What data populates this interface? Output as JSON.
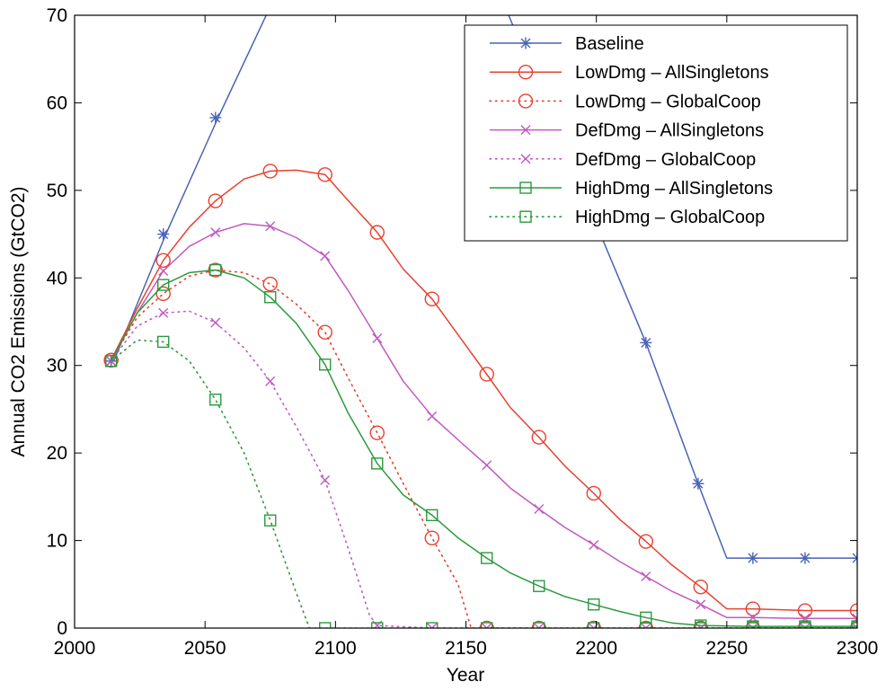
{
  "chart_data": {
    "type": "line",
    "title": "",
    "xlabel": "Year",
    "ylabel": "Annual CO2 Emissions (GtCO2)",
    "xlim": [
      2000,
      2300
    ],
    "ylim": [
      0,
      70
    ],
    "x_ticks": [
      "2000",
      "2050",
      "2100",
      "2150",
      "2200",
      "2250",
      "2300"
    ],
    "y_ticks": [
      "0",
      "10",
      "20",
      "30",
      "40",
      "50",
      "60",
      "70"
    ],
    "grid": false,
    "legend_position": "top-right",
    "x": [
      2015,
      2035,
      2055,
      2075,
      2095,
      2115,
      2135,
      2155,
      2175,
      2195,
      2215,
      2235,
      2255,
      2275,
      2295
    ],
    "series": [
      {
        "name": "Baseline",
        "color": "#4a63b8",
        "line_style": "solid",
        "marker": "asterisk",
        "points": [
          [
            2015,
            30.5
          ],
          [
            2035,
            45.0
          ],
          [
            2055,
            58.3
          ],
          [
            2075,
            71.0
          ],
          [
            2165,
            71.0
          ],
          [
            2219,
            32.6
          ],
          [
            2239,
            16.5
          ],
          [
            2250,
            8.0
          ],
          [
            2260,
            8.0
          ],
          [
            2280,
            8.0
          ],
          [
            2300,
            8.0
          ]
        ],
        "marker_points": [
          [
            2014,
            30.5
          ],
          [
            2034,
            45.0
          ],
          [
            2054,
            58.3
          ],
          [
            2219,
            32.6
          ],
          [
            2239,
            16.5
          ],
          [
            2260,
            8.0
          ],
          [
            2280,
            8.0
          ],
          [
            2300,
            8.0
          ]
        ]
      },
      {
        "name": "LowDmg – AllSingletons",
        "color": "#e8402f",
        "line_style": "solid",
        "marker": "circle",
        "points": [
          [
            2014,
            30.6
          ],
          [
            2024,
            36.5
          ],
          [
            2034,
            42.0
          ],
          [
            2044,
            45.8
          ],
          [
            2054,
            48.8
          ],
          [
            2065,
            51.3
          ],
          [
            2075,
            52.2
          ],
          [
            2085,
            52.3
          ],
          [
            2096,
            51.8
          ],
          [
            2105,
            48.8
          ],
          [
            2116,
            45.2
          ],
          [
            2126,
            41.0
          ],
          [
            2137,
            37.6
          ],
          [
            2147,
            33.5
          ],
          [
            2158,
            29.0
          ],
          [
            2167,
            25.2
          ],
          [
            2178,
            21.8
          ],
          [
            2188,
            18.5
          ],
          [
            2199,
            15.4
          ],
          [
            2209,
            12.4
          ],
          [
            2219,
            9.9
          ],
          [
            2229,
            7.2
          ],
          [
            2240,
            4.7
          ],
          [
            2250,
            2.2
          ],
          [
            2260,
            2.2
          ],
          [
            2280,
            2.0
          ],
          [
            2300,
            2.0
          ]
        ],
        "marker_points": [
          [
            2014,
            30.6
          ],
          [
            2034,
            42.0
          ],
          [
            2054,
            48.8
          ],
          [
            2075,
            52.2
          ],
          [
            2096,
            51.8
          ],
          [
            2116,
            45.2
          ],
          [
            2137,
            37.6
          ],
          [
            2158,
            29.0
          ],
          [
            2178,
            21.8
          ],
          [
            2199,
            15.4
          ],
          [
            2219,
            9.9
          ],
          [
            2240,
            4.7
          ],
          [
            2260,
            2.2
          ],
          [
            2280,
            2.0
          ],
          [
            2300,
            2.0
          ]
        ]
      },
      {
        "name": "LowDmg – GlobalCoop",
        "color": "#e8402f",
        "line_style": "dotted",
        "marker": "circle",
        "points": [
          [
            2014,
            30.6
          ],
          [
            2024,
            35.5
          ],
          [
            2034,
            38.2
          ],
          [
            2044,
            40.2
          ],
          [
            2054,
            40.9
          ],
          [
            2065,
            40.6
          ],
          [
            2075,
            39.3
          ],
          [
            2085,
            37.0
          ],
          [
            2096,
            33.8
          ],
          [
            2105,
            28.5
          ],
          [
            2116,
            22.3
          ],
          [
            2126,
            16.5
          ],
          [
            2137,
            10.3
          ],
          [
            2147,
            5.0
          ],
          [
            2152,
            0.0
          ],
          [
            2158,
            0.0
          ],
          [
            2300,
            0.0
          ]
        ],
        "marker_points": [
          [
            2014,
            30.6
          ],
          [
            2034,
            38.2
          ],
          [
            2054,
            40.9
          ],
          [
            2075,
            39.3
          ],
          [
            2096,
            33.8
          ],
          [
            2116,
            22.3
          ],
          [
            2137,
            10.3
          ],
          [
            2158,
            0.0
          ],
          [
            2178,
            0.0
          ],
          [
            2199,
            0.0
          ],
          [
            2219,
            0.0
          ],
          [
            2240,
            0.0
          ],
          [
            2260,
            0.0
          ],
          [
            2280,
            0.0
          ],
          [
            2300,
            0.0
          ]
        ]
      },
      {
        "name": "DefDmg – AllSingletons",
        "color": "#c05ac0",
        "line_style": "solid",
        "marker": "x",
        "points": [
          [
            2014,
            30.5
          ],
          [
            2024,
            36.0
          ],
          [
            2034,
            40.8
          ],
          [
            2044,
            43.6
          ],
          [
            2054,
            45.2
          ],
          [
            2065,
            46.2
          ],
          [
            2075,
            45.9
          ],
          [
            2085,
            44.6
          ],
          [
            2096,
            42.5
          ],
          [
            2105,
            38.5
          ],
          [
            2116,
            33.1
          ],
          [
            2126,
            28.2
          ],
          [
            2137,
            24.2
          ],
          [
            2147,
            21.5
          ],
          [
            2158,
            18.6
          ],
          [
            2167,
            16.0
          ],
          [
            2178,
            13.6
          ],
          [
            2188,
            11.5
          ],
          [
            2199,
            9.5
          ],
          [
            2209,
            7.6
          ],
          [
            2219,
            5.9
          ],
          [
            2229,
            4.2
          ],
          [
            2240,
            2.7
          ],
          [
            2250,
            1.2
          ],
          [
            2260,
            1.2
          ],
          [
            2280,
            1.1
          ],
          [
            2300,
            1.1
          ]
        ],
        "marker_points": [
          [
            2014,
            30.5
          ],
          [
            2034,
            40.8
          ],
          [
            2054,
            45.2
          ],
          [
            2075,
            45.9
          ],
          [
            2096,
            42.5
          ],
          [
            2116,
            33.1
          ],
          [
            2137,
            24.2
          ],
          [
            2158,
            18.6
          ],
          [
            2178,
            13.6
          ],
          [
            2199,
            9.5
          ],
          [
            2219,
            5.9
          ],
          [
            2240,
            2.7
          ],
          [
            2260,
            1.2
          ],
          [
            2280,
            1.1
          ],
          [
            2300,
            1.1
          ]
        ]
      },
      {
        "name": "DefDmg – GlobalCoop",
        "color": "#c05ac0",
        "line_style": "dotted",
        "marker": "x",
        "points": [
          [
            2014,
            30.5
          ],
          [
            2024,
            34.5
          ],
          [
            2034,
            36.0
          ],
          [
            2044,
            36.2
          ],
          [
            2054,
            34.9
          ],
          [
            2065,
            32.0
          ],
          [
            2075,
            28.2
          ],
          [
            2085,
            23.0
          ],
          [
            2096,
            16.9
          ],
          [
            2105,
            9.0
          ],
          [
            2113,
            1.5
          ],
          [
            2116,
            0.3
          ],
          [
            2137,
            0.0
          ],
          [
            2300,
            0.0
          ]
        ],
        "marker_points": [
          [
            2014,
            30.5
          ],
          [
            2034,
            36.0
          ],
          [
            2054,
            34.9
          ],
          [
            2075,
            28.2
          ],
          [
            2096,
            16.9
          ],
          [
            2116,
            0.3
          ],
          [
            2137,
            0.0
          ],
          [
            2158,
            0.0
          ],
          [
            2178,
            0.0
          ],
          [
            2199,
            0.0
          ],
          [
            2219,
            0.0
          ],
          [
            2240,
            0.0
          ],
          [
            2260,
            0.0
          ],
          [
            2280,
            0.0
          ],
          [
            2300,
            0.0
          ]
        ]
      },
      {
        "name": "HighDmg – AllSingletons",
        "color": "#2a9a3e",
        "line_style": "solid",
        "marker": "square",
        "points": [
          [
            2014,
            30.5
          ],
          [
            2024,
            36.0
          ],
          [
            2034,
            39.2
          ],
          [
            2044,
            40.6
          ],
          [
            2054,
            40.9
          ],
          [
            2065,
            40.0
          ],
          [
            2075,
            37.8
          ],
          [
            2085,
            34.8
          ],
          [
            2096,
            30.1
          ],
          [
            2105,
            24.5
          ],
          [
            2116,
            18.8
          ],
          [
            2126,
            15.2
          ],
          [
            2137,
            12.9
          ],
          [
            2147,
            10.3
          ],
          [
            2158,
            8.0
          ],
          [
            2167,
            6.3
          ],
          [
            2178,
            4.8
          ],
          [
            2188,
            3.6
          ],
          [
            2199,
            2.7
          ],
          [
            2209,
            1.9
          ],
          [
            2219,
            1.2
          ],
          [
            2229,
            0.6
          ],
          [
            2240,
            0.3
          ],
          [
            2260,
            0.2
          ],
          [
            2280,
            0.2
          ],
          [
            2300,
            0.2
          ]
        ],
        "marker_points": [
          [
            2014,
            30.5
          ],
          [
            2034,
            39.2
          ],
          [
            2054,
            40.9
          ],
          [
            2075,
            37.8
          ],
          [
            2096,
            30.1
          ],
          [
            2116,
            18.8
          ],
          [
            2137,
            12.9
          ],
          [
            2158,
            8.0
          ],
          [
            2178,
            4.8
          ],
          [
            2199,
            2.7
          ],
          [
            2219,
            1.2
          ],
          [
            2240,
            0.3
          ],
          [
            2260,
            0.2
          ],
          [
            2280,
            0.2
          ],
          [
            2300,
            0.2
          ]
        ]
      },
      {
        "name": "HighDmg – GlobalCoop",
        "color": "#2a9a3e",
        "line_style": "dotted",
        "marker": "square",
        "points": [
          [
            2014,
            30.5
          ],
          [
            2024,
            32.9
          ],
          [
            2034,
            32.7
          ],
          [
            2044,
            30.5
          ],
          [
            2054,
            26.1
          ],
          [
            2065,
            20.0
          ],
          [
            2075,
            12.3
          ],
          [
            2085,
            4.0
          ],
          [
            2090,
            0.0
          ],
          [
            2096,
            0.0
          ],
          [
            2300,
            0.0
          ]
        ],
        "marker_points": [
          [
            2014,
            30.5
          ],
          [
            2034,
            32.7
          ],
          [
            2054,
            26.1
          ],
          [
            2075,
            12.3
          ],
          [
            2096,
            0.0
          ],
          [
            2116,
            0.0
          ],
          [
            2137,
            0.0
          ],
          [
            2158,
            0.0
          ],
          [
            2178,
            0.0
          ],
          [
            2199,
            0.0
          ],
          [
            2219,
            0.0
          ],
          [
            2240,
            0.0
          ],
          [
            2260,
            0.0
          ],
          [
            2280,
            0.0
          ],
          [
            2300,
            0.0
          ]
        ]
      }
    ]
  }
}
